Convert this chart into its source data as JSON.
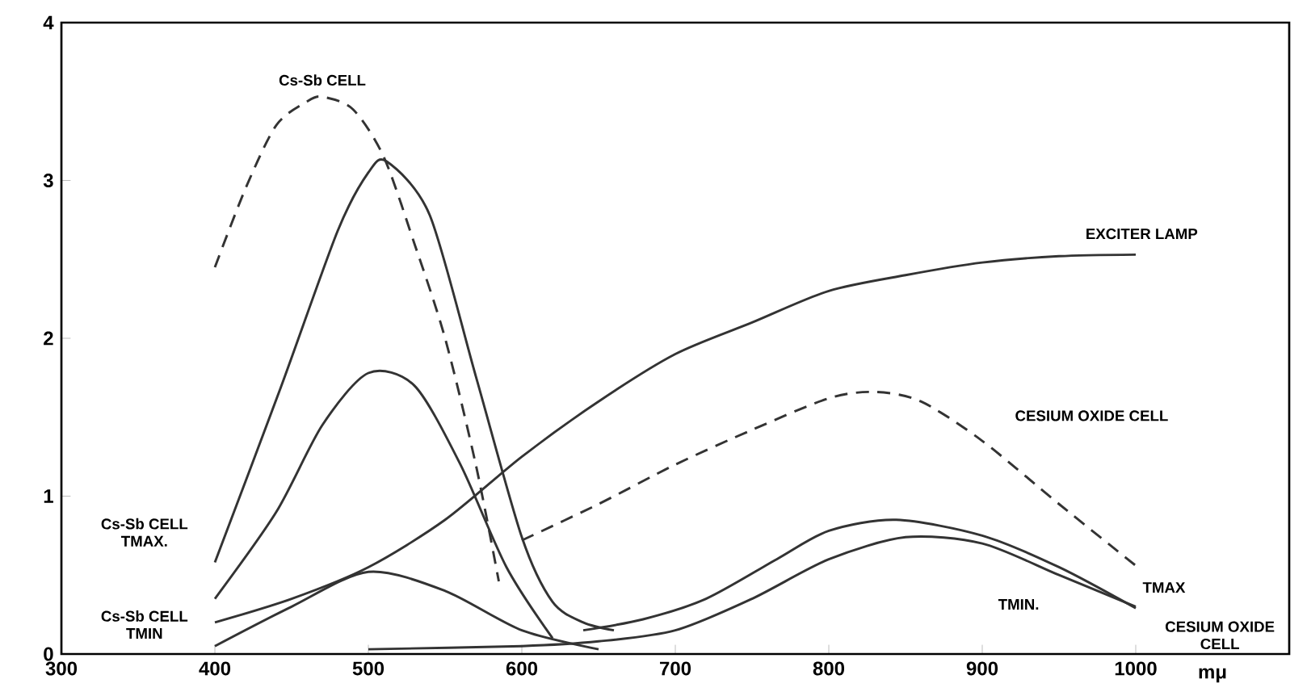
{
  "chart_data": {
    "type": "line",
    "xlabel": "mμ",
    "xlim": [
      300,
      1100
    ],
    "ylim": [
      0,
      4
    ],
    "xticks": [
      300,
      400,
      500,
      600,
      700,
      800,
      900,
      1000
    ],
    "yticks": [
      0,
      1,
      2,
      3,
      4
    ],
    "grid": false,
    "legend": false,
    "marker": "none",
    "series": [
      {
        "name": "Cs-Sb CELL",
        "color": "#333333",
        "line_style": "dashed",
        "x": [
          400,
          420,
          440,
          460,
          470,
          490,
          510,
          530,
          550,
          570,
          585
        ],
        "values": [
          2.45,
          2.95,
          3.35,
          3.5,
          3.53,
          3.45,
          3.15,
          2.6,
          2.0,
          1.2,
          0.46
        ]
      },
      {
        "name": "CESIUM OXIDE CELL",
        "color": "#333333",
        "line_style": "dashed",
        "x": [
          600,
          650,
          700,
          750,
          800,
          830,
          860,
          900,
          950,
          1000
        ],
        "values": [
          0.72,
          0.95,
          1.2,
          1.42,
          1.62,
          1.66,
          1.6,
          1.35,
          0.95,
          0.56
        ]
      },
      {
        "name": "EXCITER LAMP",
        "color": "#333333",
        "line_style": "solid",
        "x": [
          400,
          450,
          500,
          550,
          600,
          650,
          700,
          750,
          800,
          850,
          900,
          950,
          1000
        ],
        "values": [
          0.2,
          0.35,
          0.55,
          0.85,
          1.25,
          1.6,
          1.9,
          2.1,
          2.3,
          2.4,
          2.48,
          2.52,
          2.53
        ]
      },
      {
        "name": "Cs-Sb CELL TMAX.",
        "color": "#333333",
        "line_style": "solid",
        "x": [
          400,
          443,
          480,
          500,
          512,
          540,
          570,
          600,
          620,
          640,
          660
        ],
        "values": [
          0.58,
          1.69,
          2.68,
          3.05,
          3.12,
          2.78,
          1.76,
          0.74,
          0.33,
          0.2,
          0.15
        ]
      },
      {
        "color": "#333333",
        "line_style": "solid",
        "x": [
          400,
          440,
          470,
          500,
          530,
          560,
          590,
          620
        ],
        "values": [
          0.35,
          0.9,
          1.45,
          1.78,
          1.7,
          1.2,
          0.55,
          0.1
        ]
      },
      {
        "name": "Cs-Sb CELL TMIN",
        "color": "#333333",
        "line_style": "solid",
        "x": [
          400,
          450,
          500,
          550,
          600,
          650
        ],
        "values": [
          0.05,
          0.3,
          0.52,
          0.4,
          0.15,
          0.03
        ]
      },
      {
        "name": "TMAX",
        "color": "#333333",
        "line_style": "solid",
        "x": [
          640,
          679,
          720,
          766,
          800,
          844,
          900,
          950,
          1000
        ],
        "values": [
          0.15,
          0.22,
          0.35,
          0.6,
          0.78,
          0.85,
          0.75,
          0.55,
          0.29
        ]
      },
      {
        "name": "TMIN.",
        "color": "#333333",
        "line_style": "solid",
        "x": [
          500,
          600,
          650,
          700,
          750,
          800,
          850,
          900,
          950,
          1000
        ],
        "values": [
          0.03,
          0.05,
          0.08,
          0.15,
          0.35,
          0.6,
          0.74,
          0.7,
          0.5,
          0.3
        ]
      }
    ],
    "annotations": [
      "CESIUM OXIDE CELL"
    ]
  }
}
